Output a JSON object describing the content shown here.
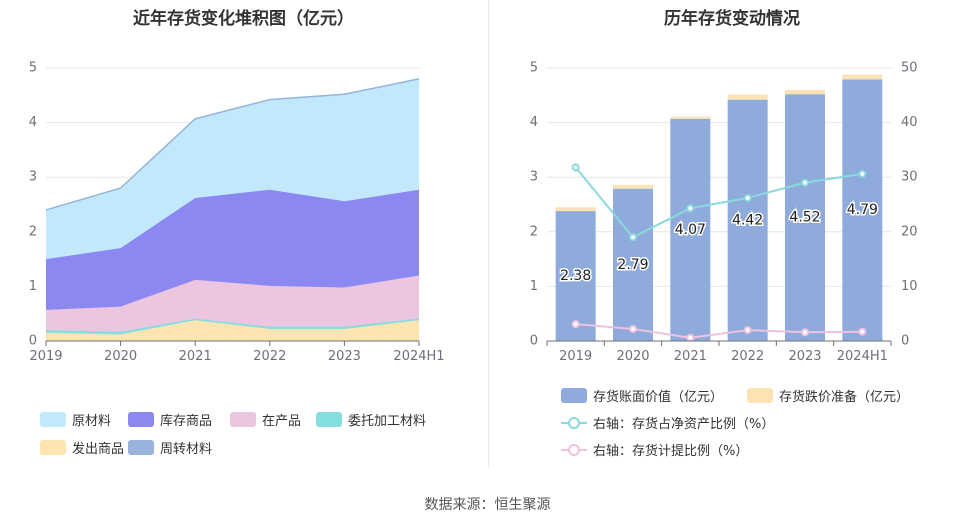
{
  "left_chart": {
    "title": "近年存货变化堆积图（亿元）",
    "legend": [
      "原材料",
      "库存商品",
      "在产品",
      "委托加工材料",
      "发出商品",
      "周转材料"
    ]
  },
  "right_chart": {
    "title": "历年存货变动情况",
    "legend": [
      "存货账面价值（亿元）",
      "存货跌价准备（亿元）",
      "右轴：存货占净资产比例（%）",
      "右轴：存货计提比例（%）"
    ]
  },
  "source": "数据来源：恒生聚源",
  "colors": {
    "raw_materials": "#c2e9fb",
    "inventory_goods": "#8b88f2",
    "wip": "#ecc5e0",
    "consigned": "#86dede",
    "shipped": "#fde4b0",
    "turnover": "#9ab3dd",
    "book_value": "#8eabdc",
    "impairment": "#fde3b3",
    "ratio_net_assets": "#8ad9dd",
    "provision_ratio": "#f0c2e0"
  },
  "chart_data": [
    {
      "type": "area",
      "stacked": true,
      "title": "近年存货变化堆积图（亿元）",
      "categories": [
        "2019",
        "2020",
        "2021",
        "2022",
        "2023",
        "2024H1"
      ],
      "ylim": [
        0,
        5
      ],
      "yticks": [
        0,
        1,
        2,
        3,
        4,
        5
      ],
      "series": [
        {
          "name": "发出商品",
          "values": [
            0.15,
            0.12,
            0.38,
            0.22,
            0.22,
            0.38
          ]
        },
        {
          "name": "委托加工材料",
          "values": [
            0.05,
            0.05,
            0.03,
            0.04,
            0.04,
            0.03
          ]
        },
        {
          "name": "在产品",
          "values": [
            0.37,
            0.46,
            0.71,
            0.75,
            0.72,
            0.79
          ]
        },
        {
          "name": "库存商品",
          "values": [
            0.93,
            1.07,
            1.5,
            1.76,
            1.58,
            1.57
          ]
        },
        {
          "name": "原材料",
          "values": [
            0.9,
            1.1,
            1.45,
            1.65,
            1.96,
            2.03
          ]
        },
        {
          "name": "周转材料",
          "values": [
            0,
            0,
            0,
            0,
            0,
            0
          ]
        }
      ],
      "grid": true,
      "legend_position": "bottom"
    },
    {
      "type": "bar",
      "stacked": true,
      "title": "历年存货变动情况",
      "categories": [
        "2019",
        "2020",
        "2021",
        "2022",
        "2023",
        "2024H1"
      ],
      "ylim": [
        0,
        5
      ],
      "yticks": [
        0,
        1,
        2,
        3,
        4,
        5
      ],
      "y2lim": [
        0,
        50
      ],
      "y2ticks": [
        0,
        10,
        20,
        30,
        40,
        50
      ],
      "series": [
        {
          "name": "存货账面价值（亿元）",
          "axis": "left",
          "values": [
            2.38,
            2.79,
            4.07,
            4.42,
            4.52,
            4.79
          ],
          "labels": [
            "2.38",
            "2.79",
            "4.07",
            "4.42",
            "4.52",
            "4.79"
          ]
        },
        {
          "name": "存货跌价准备（亿元）",
          "axis": "left",
          "values": [
            0.07,
            0.07,
            0.04,
            0.09,
            0.08,
            0.09
          ]
        },
        {
          "name": "右轴：存货占净资产比例（%）",
          "axis": "right",
          "type": "line",
          "values": [
            31.8,
            19.0,
            24.3,
            26.2,
            29.0,
            30.6
          ]
        },
        {
          "name": "右轴：存货计提比例（%）",
          "axis": "right",
          "type": "line",
          "values": [
            3.1,
            2.2,
            0.6,
            2.0,
            1.6,
            1.7
          ]
        }
      ],
      "grid": true,
      "legend_position": "bottom"
    }
  ]
}
